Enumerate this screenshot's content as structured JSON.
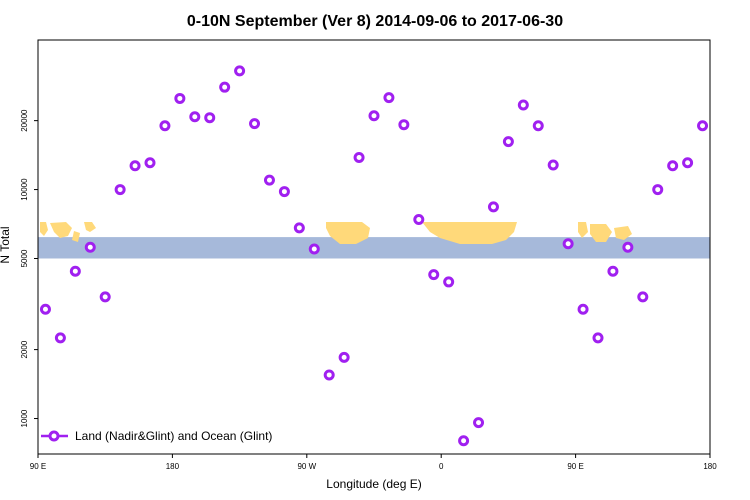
{
  "chart_data": {
    "type": "scatter",
    "title": "0-10N September (Ver 8)   2014-09-06 to 2017-06-30",
    "xlabel": "Longitude (deg E)",
    "ylabel": "N Total",
    "x_scale": "linear",
    "y_scale": "log",
    "xlim": [
      90,
      540
    ],
    "ylim": [
      700,
      45000
    ],
    "x_ticks": [
      {
        "value": 90,
        "label": "90 E"
      },
      {
        "value": 180,
        "label": "180"
      },
      {
        "value": 270,
        "label": "90 W"
      },
      {
        "value": 360,
        "label": "0"
      },
      {
        "value": 450,
        "label": "90 E"
      },
      {
        "value": 540,
        "label": "180"
      }
    ],
    "y_ticks": [
      {
        "value": 1000,
        "label": "1000"
      },
      {
        "value": 2000,
        "label": "2000"
      },
      {
        "value": 5000,
        "label": "5000"
      },
      {
        "value": 10000,
        "label": "10000"
      },
      {
        "value": 20000,
        "label": "20000"
      }
    ],
    "map_band": {
      "lat_range": "0-10N",
      "ocean_color": "#A6B9DA",
      "land_color": "#FFD97A",
      "y_range": [
        5000,
        6200
      ]
    },
    "marker_color": "#A020F0",
    "legend": {
      "position": "bottom-left",
      "entries": [
        "Land (Nadir&Glint) and Ocean (Glint)"
      ]
    },
    "series": [
      {
        "name": "Land (Nadir&Glint) and Ocean (Glint)",
        "x": [
          95,
          105,
          115,
          125,
          135,
          145,
          155,
          165,
          175,
          185,
          195,
          205,
          215,
          225,
          235,
          245,
          255,
          265,
          275,
          285,
          295,
          305,
          315,
          325,
          335,
          345,
          355,
          365,
          375,
          385,
          395,
          405,
          415,
          425,
          435,
          445,
          455,
          465,
          475,
          485,
          495,
          505,
          515,
          525,
          535
        ],
        "y": [
          3000,
          2250,
          4400,
          5600,
          3400,
          10000,
          12700,
          13100,
          19000,
          25000,
          20800,
          20600,
          28000,
          33000,
          19400,
          11000,
          9800,
          6800,
          5500,
          1550,
          1850,
          13800,
          21000,
          25200,
          19200,
          7400,
          4250,
          3950,
          800,
          960,
          8400,
          16200,
          23400,
          19000,
          12800,
          5800,
          3000,
          2250,
          4400,
          5600,
          3400,
          10000,
          12700,
          13100,
          19000
        ]
      }
    ]
  }
}
